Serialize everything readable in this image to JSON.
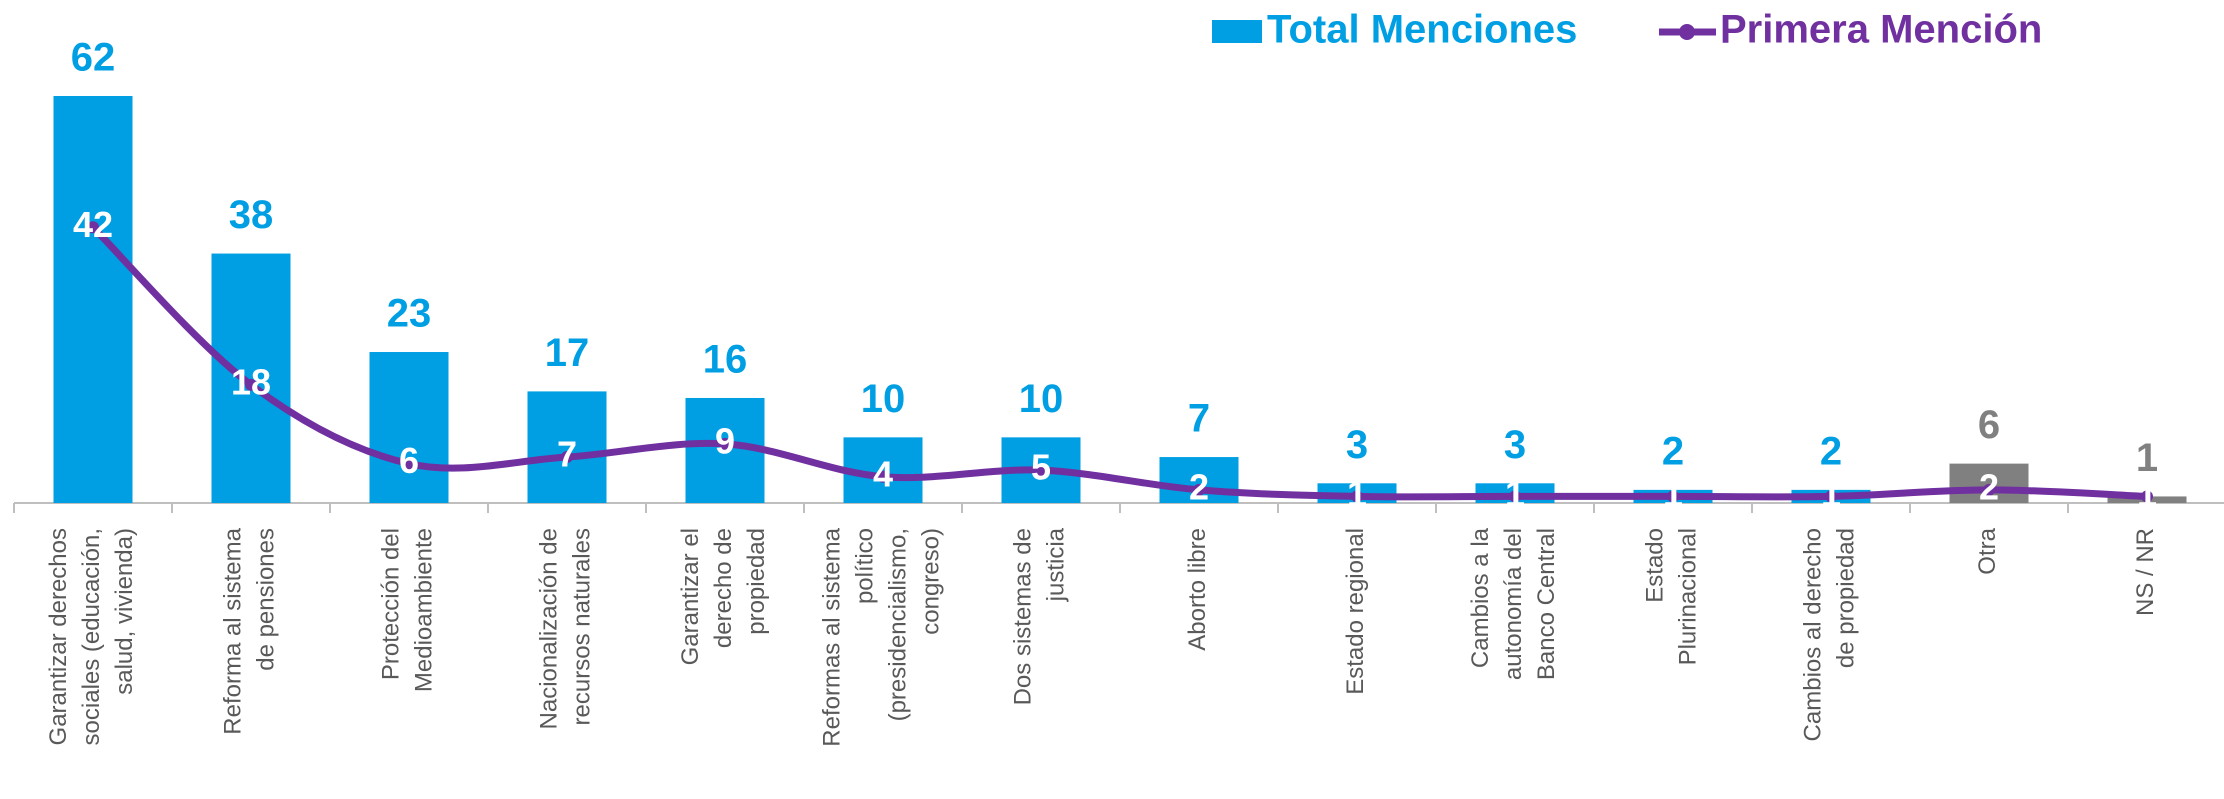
{
  "chart_data": {
    "type": "bar_line",
    "categories": [
      "Garantizar derechos\nsociales (educación,\nsalud, vivienda)",
      "Reforma al sistema\nde pensiones",
      "Protección del\nMedioambiente",
      "Nacionalización de\nrecursos naturales",
      "Garantizar el\nderecho de\npropiedad",
      "Reformas al sistema\npolítico\n(presidencialismo,\ncongreso)",
      "Dos sistemas de\njusticia",
      "Aborto libre",
      "Estado regional",
      "Cambios a la\nautonomía del\nBanco Central",
      "Estado\nPlurinacional",
      "Cambios al derecho\nde propiedad",
      "Otra",
      "NS / NR"
    ],
    "series": [
      {
        "name": "Total Menciones",
        "type": "bar",
        "color": "#009fe3",
        "colors": [
          "#009fe3",
          "#009fe3",
          "#009fe3",
          "#009fe3",
          "#009fe3",
          "#009fe3",
          "#009fe3",
          "#009fe3",
          "#009fe3",
          "#009fe3",
          "#009fe3",
          "#009fe3",
          "#808080",
          "#808080"
        ],
        "values": [
          62,
          38,
          23,
          17,
          16,
          10,
          10,
          7,
          3,
          3,
          2,
          2,
          6,
          1
        ]
      },
      {
        "name": "Primera Mención",
        "type": "line",
        "color": "#7030a0",
        "values": [
          42,
          18,
          6,
          7,
          9,
          4,
          5,
          2,
          1,
          1,
          1,
          1,
          2,
          1
        ]
      }
    ]
  }
}
